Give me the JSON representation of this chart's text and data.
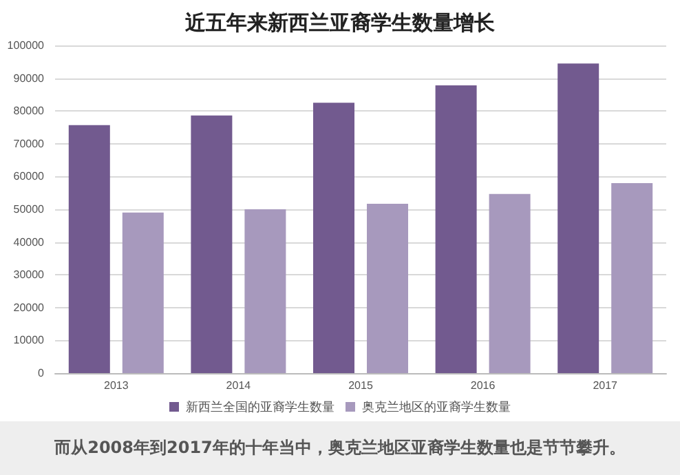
{
  "chart_data": {
    "type": "bar",
    "title": "近五年来新西兰亚裔学生数量增长",
    "categories": [
      "2013",
      "2014",
      "2015",
      "2016",
      "2017"
    ],
    "series": [
      {
        "name": "新西兰全国的亚裔学生数量",
        "color": "#725a8f",
        "values": [
          75700,
          78600,
          82500,
          87800,
          94500
        ]
      },
      {
        "name": "奥克兰地区的亚裔学生数量",
        "color": "#a799bd",
        "values": [
          49000,
          50000,
          51700,
          54700,
          58000
        ]
      }
    ],
    "ylim": [
      0,
      100000
    ],
    "yticks": [
      0,
      10000,
      20000,
      30000,
      40000,
      50000,
      60000,
      70000,
      80000,
      90000,
      100000
    ],
    "grid": "y",
    "legend": "bottom",
    "annotations": [
      "而从2008年到2017年的十年当中，奥克兰地区亚裔学生数量也是节节攀升。"
    ]
  }
}
